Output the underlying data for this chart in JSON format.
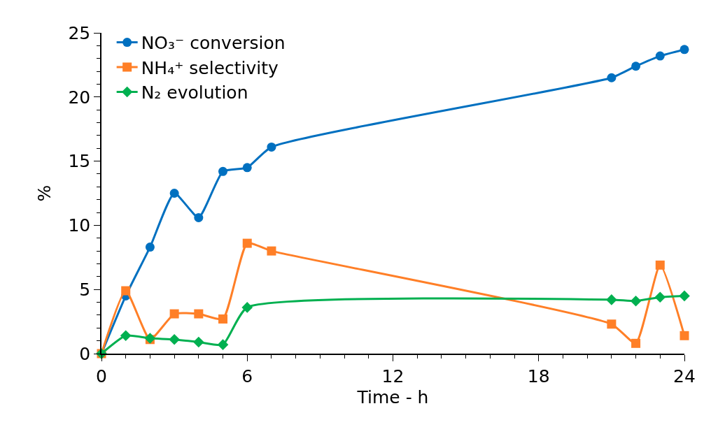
{
  "chart_data": {
    "type": "line",
    "xlabel": "Time - h",
    "ylabel": "%",
    "series": [
      {
        "name": "NO₃⁻ conversion",
        "color": "#0070c0",
        "marker": "circle",
        "x": [
          0,
          1,
          2,
          3,
          4,
          5,
          6,
          7,
          21,
          22,
          23,
          24
        ],
        "values": [
          0,
          4.5,
          8.3,
          12.5,
          10.6,
          14.2,
          14.5,
          16.1,
          21.5,
          22.4,
          23.2,
          23.7
        ]
      },
      {
        "name": "NH₄⁺ selectivity",
        "color": "#ff7f27",
        "marker": "square",
        "x": [
          0,
          1,
          2,
          3,
          4,
          5,
          6,
          7,
          21,
          22,
          23,
          24
        ],
        "values": [
          0,
          4.9,
          1.1,
          3.1,
          3.1,
          2.7,
          8.6,
          8.0,
          2.3,
          0.8,
          6.9,
          1.4
        ]
      },
      {
        "name": "N₂ evolution",
        "color": "#00b050",
        "marker": "diamond",
        "x": [
          0,
          1,
          2,
          3,
          4,
          5,
          6,
          21,
          22,
          23,
          24
        ],
        "values": [
          0,
          1.4,
          1.2,
          1.1,
          0.9,
          0.7,
          3.6,
          4.2,
          4.1,
          4.4,
          4.5
        ]
      }
    ],
    "xlim": [
      0,
      24
    ],
    "ylim": [
      0,
      25
    ],
    "xticks": [
      0,
      {
        "value": 1,
        "label": null
      },
      {
        "value": 2,
        "label": null
      },
      {
        "value": 3,
        "label": null
      },
      {
        "value": 4,
        "label": null
      },
      {
        "value": 5,
        "label": null
      },
      6,
      {
        "value": 7,
        "label": null
      },
      {
        "value": 8,
        "label": null
      },
      {
        "value": 9,
        "label": null
      },
      {
        "value": 10,
        "label": null
      },
      {
        "value": 11,
        "label": null
      },
      12,
      {
        "value": 13,
        "label": null
      },
      {
        "value": 14,
        "label": null
      },
      {
        "value": 15,
        "label": null
      },
      {
        "value": 16,
        "label": null
      },
      {
        "value": 17,
        "label": null
      },
      18,
      {
        "value": 19,
        "label": null
      },
      {
        "value": 20,
        "label": null
      },
      {
        "value": 21,
        "label": null
      },
      {
        "value": 22,
        "label": null
      },
      {
        "value": 23,
        "label": null
      },
      24
    ],
    "yticks": [
      0,
      {
        "value": 1,
        "label": null
      },
      {
        "value": 2,
        "label": null
      },
      {
        "value": 3,
        "label": null
      },
      {
        "value": 4,
        "label": null
      },
      5,
      {
        "value": 6,
        "label": null
      },
      {
        "value": 7,
        "label": null
      },
      {
        "value": 8,
        "label": null
      },
      {
        "value": 9,
        "label": null
      },
      10,
      {
        "value": 11,
        "label": null
      },
      {
        "value": 12,
        "label": null
      },
      {
        "value": 13,
        "label": null
      },
      {
        "value": 14,
        "label": null
      },
      15,
      {
        "value": 16,
        "label": null
      },
      {
        "value": 17,
        "label": null
      },
      {
        "value": 18,
        "label": null
      },
      {
        "value": 19,
        "label": null
      },
      20,
      {
        "value": 21,
        "label": null
      },
      {
        "value": 22,
        "label": null
      },
      {
        "value": 23,
        "label": null
      },
      {
        "value": 24,
        "label": null
      },
      25
    ],
    "legend": "top left"
  }
}
